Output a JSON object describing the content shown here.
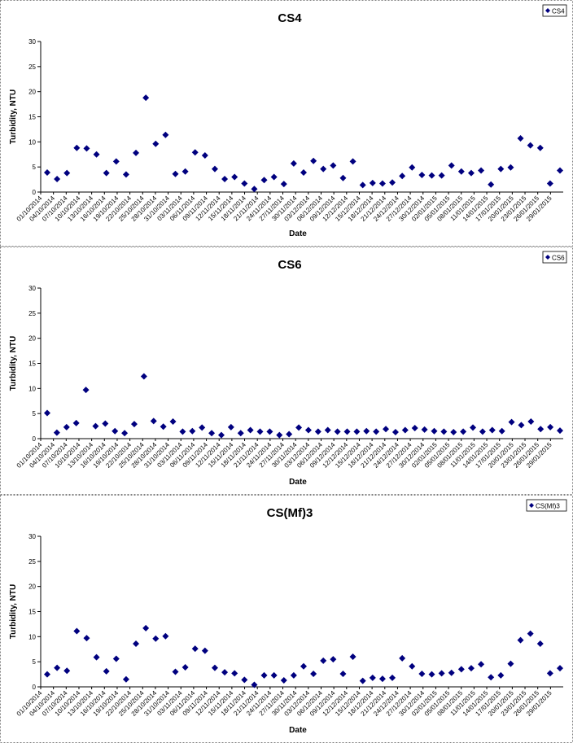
{
  "chart_data": [
    {
      "type": "scatter",
      "title": "CS4",
      "xlabel": "Date",
      "ylabel": "Turbidity, NTU",
      "ylim": [
        0,
        30
      ],
      "yticks": [
        0,
        5,
        10,
        15,
        20,
        25,
        30
      ],
      "legend": {
        "position": "top-right",
        "label": "CS4"
      },
      "x_tick_labels": [
        "01/10/2014",
        "04/10/2014",
        "07/10/2014",
        "10/10/2014",
        "13/10/2014",
        "16/10/2014",
        "19/10/2014",
        "22/10/2014",
        "25/10/2014",
        "28/10/2014",
        "31/10/2014",
        "03/11/2014",
        "06/11/2014",
        "09/11/2014",
        "12/11/2014",
        "15/11/2014",
        "18/11/2014",
        "21/11/2014",
        "24/11/2014",
        "27/11/2014",
        "30/11/2014",
        "03/12/2014",
        "06/12/2014",
        "09/12/2014",
        "12/12/2014",
        "15/12/2014",
        "18/12/2014",
        "21/12/2014",
        "24/12/2014",
        "27/12/2014",
        "30/12/2014",
        "02/01/2015",
        "05/01/2015",
        "08/01/2015",
        "11/01/2015",
        "14/01/2015",
        "17/01/2015",
        "20/01/2015",
        "23/01/2015",
        "26/01/2015",
        "29/01/2015"
      ],
      "series": [
        {
          "name": "CS4",
          "values": [
            3.9,
            2.6,
            3.8,
            8.8,
            8.7,
            7.5,
            3.8,
            6.1,
            3.5,
            7.8,
            18.8,
            9.6,
            11.4,
            3.6,
            4.1,
            7.9,
            7.3,
            4.6,
            2.6,
            3.0,
            1.7,
            0.6,
            2.4,
            3.0,
            1.6,
            5.7,
            3.9,
            6.2,
            4.6,
            5.3,
            2.8,
            6.1,
            1.4,
            1.8,
            1.7,
            1.9,
            3.2,
            4.9,
            3.4,
            3.3,
            3.3,
            5.3,
            4.1,
            3.8,
            4.3,
            1.5,
            4.6,
            4.9,
            10.7,
            9.3,
            8.8,
            1.7,
            4.3
          ]
        }
      ]
    },
    {
      "type": "scatter",
      "title": "CS6",
      "xlabel": "Date",
      "ylabel": "Turbidity, NTU",
      "ylim": [
        0,
        30
      ],
      "yticks": [
        0,
        5,
        10,
        15,
        20,
        25,
        30
      ],
      "legend": {
        "position": "top-right",
        "label": "CS6"
      },
      "x_tick_labels": [
        "01/10/2014",
        "04/10/2014",
        "07/10/2014",
        "10/10/2014",
        "13/10/2014",
        "16/10/2014",
        "19/10/2014",
        "22/10/2014",
        "25/10/2014",
        "28/10/2014",
        "31/10/2014",
        "03/11/2014",
        "06/11/2014",
        "09/11/2014",
        "12/11/2014",
        "15/11/2014",
        "18/11/2014",
        "21/11/2014",
        "24/11/2014",
        "27/11/2014",
        "30/11/2014",
        "03/12/2014",
        "06/12/2014",
        "09/12/2014",
        "12/12/2014",
        "15/12/2014",
        "18/12/2014",
        "21/12/2014",
        "24/12/2014",
        "27/12/2014",
        "30/12/2014",
        "02/01/2015",
        "05/01/2015",
        "08/01/2015",
        "11/01/2015",
        "14/01/2015",
        "17/01/2015",
        "20/01/2015",
        "23/01/2015",
        "26/01/2015",
        "29/01/2015"
      ],
      "series": [
        {
          "name": "CS6",
          "values": [
            5.1,
            1.2,
            2.3,
            3.1,
            9.7,
            2.5,
            3.0,
            1.5,
            1.1,
            2.9,
            12.4,
            3.5,
            2.4,
            3.4,
            1.4,
            1.5,
            2.2,
            1.1,
            0.7,
            2.3,
            1.1,
            1.7,
            1.4,
            1.4,
            0.7,
            0.9,
            2.2,
            1.7,
            1.4,
            1.7,
            1.4,
            1.4,
            1.4,
            1.5,
            1.4,
            1.9,
            1.3,
            1.7,
            2.1,
            1.8,
            1.5,
            1.4,
            1.3,
            1.4,
            2.2,
            1.4,
            1.7,
            1.5,
            3.3,
            2.7,
            3.4,
            1.9,
            2.3,
            1.6
          ]
        }
      ]
    },
    {
      "type": "scatter",
      "title": "CS(Mf)3",
      "xlabel": "Date",
      "ylabel": "Turbidity, NTU",
      "ylim": [
        0,
        30
      ],
      "yticks": [
        0,
        5,
        10,
        15,
        20,
        25,
        30
      ],
      "legend": {
        "position": "top-right",
        "label": "CS(Mf)3"
      },
      "x_tick_labels": [
        "01/10/2014",
        "04/10/2014",
        "07/10/2014",
        "10/10/2014",
        "13/10/2014",
        "16/10/2014",
        "19/10/2014",
        "22/10/2014",
        "25/10/2014",
        "28/10/2014",
        "31/10/2014",
        "03/11/2014",
        "06/11/2014",
        "09/11/2014",
        "12/11/2014",
        "15/11/2014",
        "18/11/2014",
        "21/11/2014",
        "24/11/2014",
        "27/11/2014",
        "30/11/2014",
        "03/12/2014",
        "06/12/2014",
        "09/12/2014",
        "12/12/2014",
        "15/12/2014",
        "18/12/2014",
        "21/12/2014",
        "24/12/2014",
        "27/12/2014",
        "30/12/2014",
        "02/01/2015",
        "05/01/2015",
        "08/01/2015",
        "11/01/2015",
        "14/01/2015",
        "17/01/2015",
        "20/01/2015",
        "23/01/2015",
        "26/01/2015",
        "29/01/2015"
      ],
      "series": [
        {
          "name": "CS(Mf)3",
          "values": [
            2.5,
            3.8,
            3.2,
            11.1,
            9.7,
            5.9,
            3.1,
            5.6,
            1.5,
            8.6,
            11.7,
            9.6,
            10.1,
            3.0,
            3.9,
            7.6,
            7.2,
            3.8,
            2.9,
            2.7,
            1.4,
            0.4,
            2.3,
            2.3,
            1.3,
            2.3,
            4.1,
            2.6,
            5.2,
            5.5,
            2.6,
            6.0,
            1.2,
            1.8,
            1.6,
            1.8,
            5.7,
            4.1,
            2.6,
            2.5,
            2.7,
            2.8,
            3.5,
            3.7,
            4.5,
            1.9,
            2.3,
            4.6,
            9.3,
            10.6,
            8.6,
            2.7,
            3.7
          ]
        }
      ]
    }
  ],
  "colors": {
    "marker": "#00007f",
    "axis": "#000000",
    "border": "#808080"
  }
}
